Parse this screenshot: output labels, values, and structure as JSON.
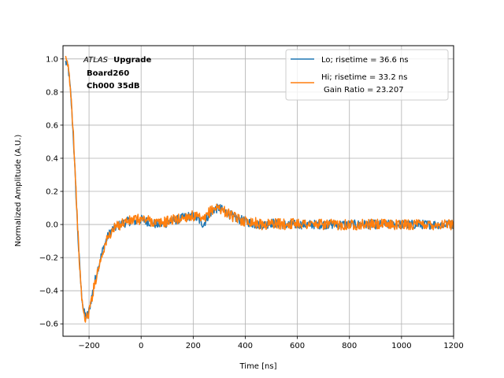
{
  "chart_data": {
    "type": "line",
    "title": "",
    "xlabel": "Time [ns]",
    "ylabel": "Normalized Amplitude (A.U.)",
    "xlim": [
      -300,
      1200
    ],
    "ylim": [
      -0.675,
      1.08
    ],
    "xticks": [
      -200,
      0,
      200,
      400,
      600,
      800,
      1000,
      1200
    ],
    "yticks": [
      -0.6,
      -0.4,
      -0.2,
      0.0,
      0.2,
      0.4,
      0.6,
      0.8,
      1.0
    ],
    "xtick_labels": [
      "−200",
      "0",
      "200",
      "400",
      "600",
      "800",
      "1000",
      "1200"
    ],
    "ytick_labels": [
      "−0.6",
      "−0.4",
      "−0.2",
      "0.0",
      "0.2",
      "0.4",
      "0.6",
      "0.8",
      "1.0"
    ],
    "grid": true,
    "legend_position": "upper-right",
    "annotation": {
      "italic": "ATLAS",
      "bold": "Upgrade",
      "line2": "Board260",
      "line3": "Ch000 35dB"
    },
    "legend": {
      "lo": "Lo; risetime = 36.6 ns",
      "hi_line1": "Hi; risetime = 33.2 ns",
      "hi_line2": "Gain Ratio = 23.207"
    },
    "series": [
      {
        "name": "Lo; risetime = 36.6 ns",
        "color": "#1f77b4",
        "x": [
          -290,
          -280,
          -270,
          -260,
          -250,
          -240,
          -230,
          -220,
          -210,
          -200,
          -190,
          -180,
          -170,
          -160,
          -150,
          -140,
          -130,
          -120,
          -110,
          -100,
          -90,
          -80,
          -70,
          -60,
          -50,
          -40,
          -30,
          -20,
          -10,
          0,
          20,
          40,
          60,
          80,
          100,
          120,
          140,
          160,
          180,
          200,
          220,
          240,
          260,
          280,
          300,
          320,
          340,
          360,
          380,
          400,
          420,
          440,
          460,
          480,
          500,
          550,
          600,
          650,
          700,
          750,
          800,
          850,
          900,
          950,
          1000,
          1050,
          1100,
          1150,
          1200
        ],
        "y": [
          0.98,
          0.95,
          0.78,
          0.52,
          0.18,
          -0.15,
          -0.4,
          -0.53,
          -0.56,
          -0.52,
          -0.44,
          -0.36,
          -0.29,
          -0.23,
          -0.17,
          -0.12,
          -0.08,
          -0.05,
          -0.03,
          -0.02,
          -0.01,
          0.0,
          0.01,
          0.01,
          0.02,
          0.02,
          0.02,
          0.02,
          0.03,
          0.03,
          0.02,
          0.01,
          0.0,
          0.0,
          0.01,
          0.02,
          0.03,
          0.04,
          0.05,
          0.05,
          0.03,
          0.0,
          0.06,
          0.09,
          0.1,
          0.08,
          0.06,
          0.04,
          0.03,
          0.02,
          0.01,
          0.0,
          0.0,
          0.0,
          0.01,
          0.0,
          0.0,
          0.0,
          0.0,
          0.0,
          0.0,
          0.0,
          0.0,
          0.0,
          0.0,
          0.0,
          0.0,
          0.0,
          0.0
        ]
      },
      {
        "name": "Hi; risetime = 33.2 ns",
        "color": "#ff7f0e",
        "x": [
          -290,
          -280,
          -270,
          -260,
          -250,
          -240,
          -230,
          -220,
          -210,
          -200,
          -190,
          -180,
          -170,
          -160,
          -150,
          -140,
          -130,
          -120,
          -110,
          -100,
          -90,
          -80,
          -70,
          -60,
          -50,
          -40,
          -30,
          -20,
          -10,
          0,
          20,
          40,
          60,
          80,
          100,
          120,
          140,
          160,
          180,
          200,
          220,
          240,
          260,
          280,
          300,
          320,
          340,
          360,
          380,
          400,
          420,
          440,
          460,
          480,
          500,
          550,
          600,
          650,
          700,
          750,
          800,
          850,
          900,
          950,
          1000,
          1050,
          1100,
          1150,
          1200
        ],
        "y": [
          0.99,
          0.96,
          0.8,
          0.55,
          0.2,
          -0.14,
          -0.41,
          -0.55,
          -0.57,
          -0.53,
          -0.45,
          -0.37,
          -0.3,
          -0.24,
          -0.18,
          -0.13,
          -0.09,
          -0.06,
          -0.04,
          -0.02,
          -0.01,
          0.0,
          0.01,
          0.02,
          0.02,
          0.02,
          0.03,
          0.03,
          0.03,
          0.03,
          0.03,
          0.02,
          0.01,
          0.01,
          0.02,
          0.03,
          0.03,
          0.04,
          0.05,
          0.05,
          0.04,
          0.02,
          0.07,
          0.1,
          0.1,
          0.08,
          0.06,
          0.04,
          0.03,
          0.02,
          0.02,
          0.01,
          0.0,
          0.0,
          0.01,
          0.0,
          0.01,
          0.0,
          0.0,
          0.0,
          0.0,
          0.0,
          0.0,
          0.0,
          0.0,
          0.0,
          0.0,
          0.0,
          0.0
        ]
      }
    ]
  }
}
